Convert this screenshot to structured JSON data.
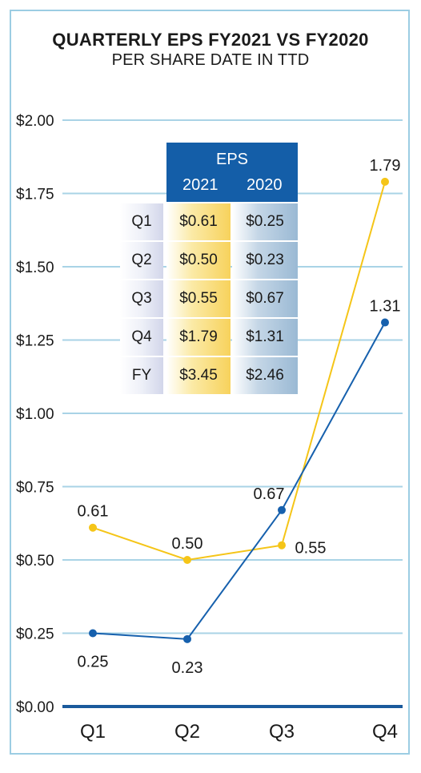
{
  "title": "QUARTERLY EPS FY2021 VS FY2020",
  "subtitle": "PER SHARE DATE IN TTD",
  "chart_data": {
    "type": "line",
    "title": "QUARTERLY EPS FY2021 VS FY2020",
    "subtitle": "PER SHARE DATE IN TTD",
    "categories": [
      "Q1",
      "Q2",
      "Q3",
      "Q4"
    ],
    "ylim": [
      0,
      2
    ],
    "yticks": [
      0,
      0.25,
      0.5,
      0.75,
      1.0,
      1.25,
      1.5,
      1.75,
      2.0
    ],
    "ytick_labels": [
      "$0.00",
      "$0.25",
      "$0.50",
      "$0.75",
      "$1.00",
      "$1.25",
      "$1.50",
      "$1.75",
      "$2.00"
    ],
    "grid": true,
    "series": [
      {
        "name": "2021",
        "color": "#f5c518",
        "values": [
          0.61,
          0.5,
          0.55,
          1.79
        ],
        "labels": [
          "0.61",
          "0.50",
          "0.55",
          "1.79"
        ]
      },
      {
        "name": "2020",
        "color": "#1660ad",
        "values": [
          0.25,
          0.23,
          0.67,
          1.31
        ],
        "labels": [
          "0.25",
          "0.23",
          "0.67",
          "1.31"
        ]
      }
    ]
  },
  "table": {
    "header": "EPS",
    "columns": [
      "2021",
      "2020"
    ],
    "rows": [
      {
        "label": "Q1",
        "v2021": "$0.61",
        "v2020": "$0.25"
      },
      {
        "label": "Q2",
        "v2021": "$0.50",
        "v2020": "$0.23"
      },
      {
        "label": "Q3",
        "v2021": "$0.55",
        "v2020": "$0.67"
      },
      {
        "label": "Q4",
        "v2021": "$1.79",
        "v2020": "$1.31"
      },
      {
        "label": "FY",
        "v2021": "$3.45",
        "v2020": "$2.46"
      }
    ]
  },
  "colors": {
    "grid": "#a9d3e6",
    "axis": "#1a5a9c",
    "frame": "#9ccde3",
    "table_header": "#145ea8"
  }
}
